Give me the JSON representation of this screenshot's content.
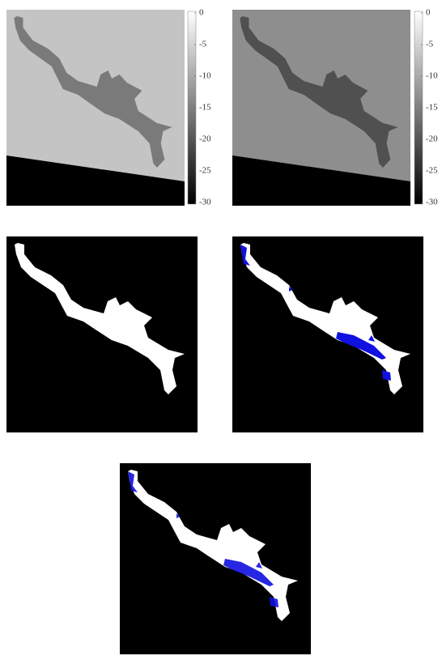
{
  "figure": {
    "colorbars": [
      {
        "clim": [
          -30,
          0
        ],
        "ticks": [
          0,
          -5,
          -10,
          -15,
          -20,
          -25,
          -30
        ]
      },
      {
        "clim": [
          -30,
          0
        ],
        "ticks": [
          0,
          -5,
          -10,
          -15,
          -20,
          -25,
          -30
        ]
      }
    ]
  }
}
